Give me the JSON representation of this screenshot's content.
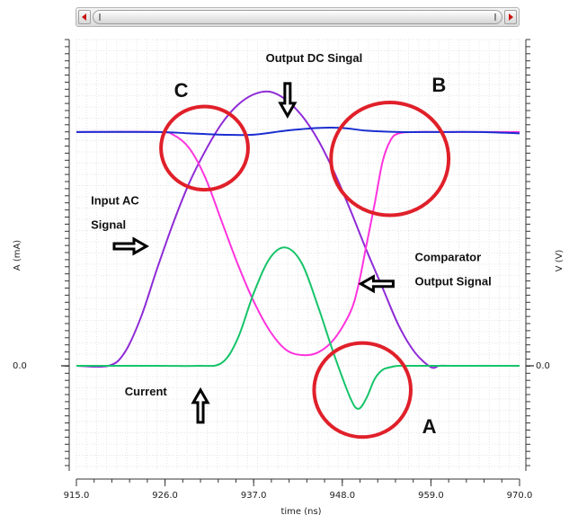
{
  "chart_data": {
    "type": "line",
    "x_axis": {
      "title": "time (ns)",
      "range": [
        915.0,
        970.0
      ],
      "ticks": [
        "915.0",
        "926.0",
        "937.0",
        "948.0",
        "959.0",
        "970.0"
      ]
    },
    "y_left": {
      "title": "A (mA)",
      "zero_label": "0.0"
    },
    "y_right": {
      "title": "V (V)",
      "zero_label": "0.0"
    },
    "grid": true,
    "series": [
      {
        "color": "#8e2bd6",
        "x": [
          915,
          919,
          921,
          923,
          925,
          927,
          929,
          931,
          933,
          935,
          937,
          939,
          941,
          943,
          945,
          947,
          949,
          951,
          953,
          955,
          957,
          959,
          960,
          961,
          963,
          965
        ],
        "y": [
          0,
          0,
          0.05,
          0.18,
          0.36,
          0.53,
          0.68,
          0.8,
          0.9,
          0.97,
          1.01,
          1.02,
          0.99,
          0.93,
          0.84,
          0.72,
          0.58,
          0.43,
          0.29,
          0.15,
          0.05,
          -0.005,
          0,
          0,
          0,
          0
        ]
      },
      {
        "color": "#ff33dd",
        "x": [
          915,
          925,
          927,
          929,
          931,
          933,
          935,
          937,
          939,
          941,
          943,
          945,
          947,
          949,
          950,
          951,
          952,
          953,
          954,
          955,
          957,
          960,
          965,
          970
        ],
        "y": [
          0.87,
          0.87,
          0.86,
          0.81,
          0.7,
          0.54,
          0.38,
          0.24,
          0.13,
          0.06,
          0.04,
          0.05,
          0.1,
          0.2,
          0.3,
          0.45,
          0.6,
          0.76,
          0.84,
          0.865,
          0.87,
          0.87,
          0.87,
          0.87
        ]
      },
      {
        "color": "#1b2fd0",
        "x": [
          915,
          925,
          929,
          933,
          937,
          941,
          945,
          948,
          951,
          955,
          960,
          965,
          970
        ],
        "y": [
          0.87,
          0.87,
          0.865,
          0.86,
          0.86,
          0.875,
          0.885,
          0.885,
          0.875,
          0.87,
          0.87,
          0.87,
          0.865
        ]
      },
      {
        "color": "#16c46a",
        "x": [
          915,
          925,
          930,
          933,
          935,
          937,
          939,
          941,
          943,
          945,
          947,
          949,
          950,
          951,
          952,
          953,
          954,
          955,
          957,
          960,
          970
        ],
        "y": [
          0,
          0,
          0,
          0.01,
          0.1,
          0.27,
          0.4,
          0.44,
          0.38,
          0.22,
          0.04,
          -0.12,
          -0.16,
          -0.12,
          -0.05,
          -0.015,
          -0.005,
          0,
          0,
          0,
          0
        ]
      }
    ],
    "annotations": [
      {
        "text_lines": [
          "Output DC Singal"
        ],
        "class": "anno",
        "x": 944.5,
        "y": 1.13,
        "anchor": "middle"
      },
      {
        "text_lines": [
          "Input AC",
          "Signal"
        ],
        "class": "anno",
        "x": 916.8,
        "y": 0.6,
        "anchor": "start",
        "lineGap": 0.09
      },
      {
        "text_lines": [
          "Comparator",
          "Output Signal"
        ],
        "class": "anno",
        "x": 957.0,
        "y": 0.39,
        "anchor": "start",
        "lineGap": 0.09
      },
      {
        "text_lines": [
          "Current"
        ],
        "class": "anno",
        "x": 921.0,
        "y": -0.11,
        "anchor": "start"
      },
      {
        "text_lines": [
          "C"
        ],
        "class": "big",
        "x": 928.0,
        "y": 1.0,
        "anchor": "middle"
      },
      {
        "text_lines": [
          "B"
        ],
        "class": "big",
        "x": 960.0,
        "y": 1.02,
        "anchor": "middle"
      },
      {
        "text_lines": [
          "A"
        ],
        "class": "big",
        "x": 958.8,
        "y": -0.25,
        "anchor": "middle"
      }
    ],
    "highlight_circles": [
      {
        "label": "C",
        "x": 930.9,
        "y": 0.81,
        "rx": 5.4,
        "ry": 0.155
      },
      {
        "label": "B",
        "x": 953.9,
        "y": 0.77,
        "rx": 7.3,
        "ry": 0.21
      },
      {
        "label": "A",
        "x": 950.5,
        "y": -0.09,
        "rx": 6.0,
        "ry": 0.175
      }
    ],
    "arrows": [
      {
        "at_x": 941.2,
        "at_y": 0.93,
        "direction": "down"
      },
      {
        "at_x": 923.7,
        "at_y": 0.445,
        "direction": "right"
      },
      {
        "at_x": 950.3,
        "at_y": 0.305,
        "direction": "left"
      },
      {
        "at_x": 930.4,
        "at_y": -0.09,
        "direction": "up"
      }
    ]
  }
}
